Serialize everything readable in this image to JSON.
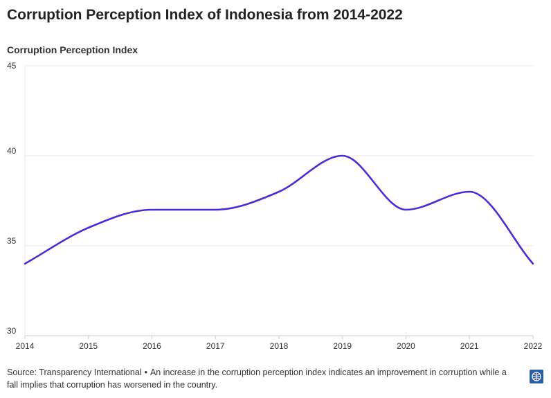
{
  "title": "Corruption Perception Index of Indonesia from 2014-2022",
  "footer": {
    "source": "Source: Transparency International",
    "separator": "•",
    "note": "An increase in the corruption perception index indicates an improvement in corruption while a fall implies that corruption has worsened in the country."
  },
  "colors": {
    "line": "#4c2bd6",
    "grid": "#e6e6e6",
    "axis": "#cccccc",
    "badge": "#2b5ea8"
  },
  "chart_data": {
    "type": "line",
    "title": "Corruption Perception Index of Indonesia from 2014-2022",
    "ylabel": "Corruption Perception Index",
    "xlabel": "",
    "x": [
      2014,
      2015,
      2016,
      2017,
      2018,
      2019,
      2020,
      2021,
      2022
    ],
    "series": [
      {
        "name": "Corruption Perception Index",
        "values": [
          34,
          36,
          37,
          37,
          38,
          40,
          37,
          38,
          34
        ]
      }
    ],
    "ylim": [
      30,
      45
    ],
    "yticks": [
      30,
      35,
      40,
      45
    ],
    "grid": true,
    "legend": "none"
  }
}
